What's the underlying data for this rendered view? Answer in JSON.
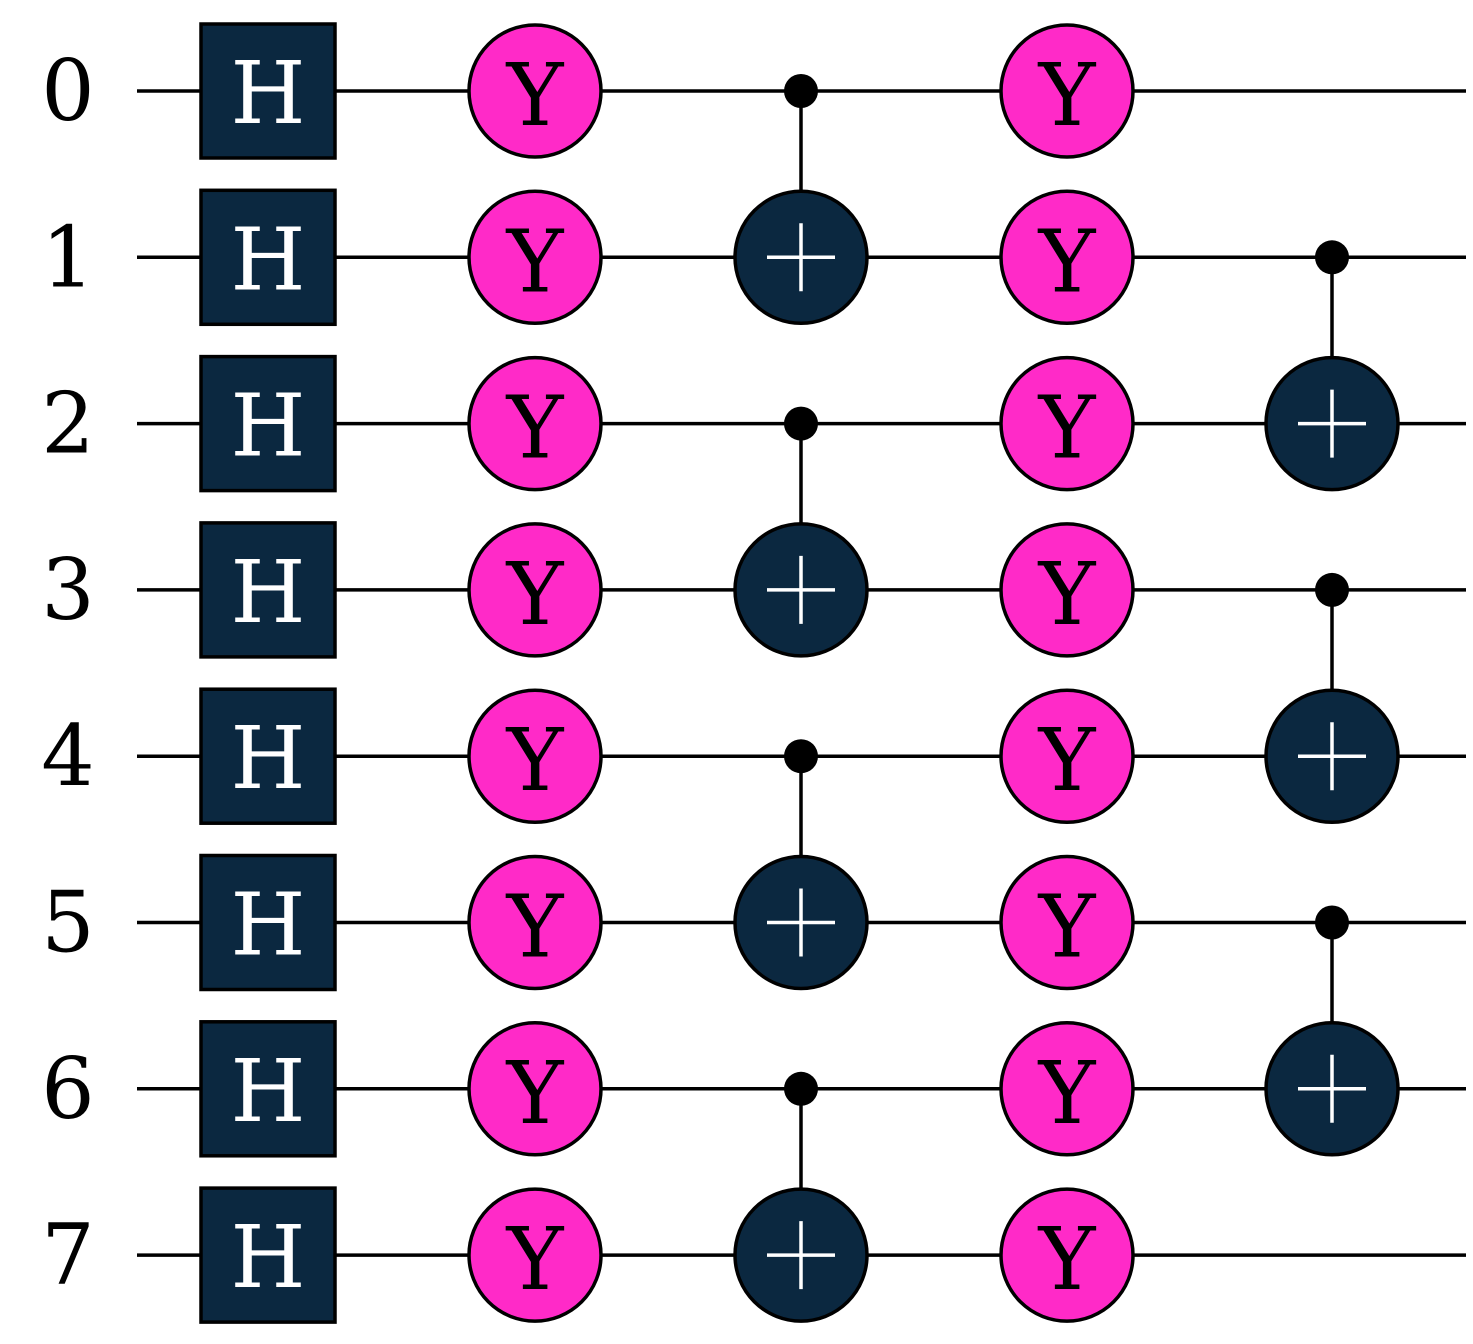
{
  "colors": {
    "background": "#ffffff",
    "wire": "#000000",
    "h_gate_fill": "#0b2840",
    "h_gate_text": "#ffffff",
    "y_gate_fill": "#ff2ac8",
    "y_gate_text": "#000000",
    "target_fill": "#0b2840",
    "target_symbol": "#ffffff",
    "control_dot": "#000000"
  },
  "circuit": {
    "num_qubits": 8,
    "qubit_labels": [
      "0",
      "1",
      "2",
      "3",
      "4",
      "5",
      "6",
      "7"
    ],
    "gate_symbols": {
      "H": "H",
      "Y": "Y"
    },
    "moments": [
      {
        "gates": [
          {
            "type": "H",
            "qubit": 0
          },
          {
            "type": "H",
            "qubit": 1
          },
          {
            "type": "H",
            "qubit": 2
          },
          {
            "type": "H",
            "qubit": 3
          },
          {
            "type": "H",
            "qubit": 4
          },
          {
            "type": "H",
            "qubit": 5
          },
          {
            "type": "H",
            "qubit": 6
          },
          {
            "type": "H",
            "qubit": 7
          }
        ]
      },
      {
        "gates": [
          {
            "type": "Y",
            "qubit": 0
          },
          {
            "type": "Y",
            "qubit": 1
          },
          {
            "type": "Y",
            "qubit": 2
          },
          {
            "type": "Y",
            "qubit": 3
          },
          {
            "type": "Y",
            "qubit": 4
          },
          {
            "type": "Y",
            "qubit": 5
          },
          {
            "type": "Y",
            "qubit": 6
          },
          {
            "type": "Y",
            "qubit": 7
          }
        ]
      },
      {
        "gates": [
          {
            "type": "CNOT",
            "control": 0,
            "target": 1
          },
          {
            "type": "CNOT",
            "control": 2,
            "target": 3
          },
          {
            "type": "CNOT",
            "control": 4,
            "target": 5
          },
          {
            "type": "CNOT",
            "control": 6,
            "target": 7
          }
        ]
      },
      {
        "gates": [
          {
            "type": "Y",
            "qubit": 0
          },
          {
            "type": "Y",
            "qubit": 1
          },
          {
            "type": "Y",
            "qubit": 2
          },
          {
            "type": "Y",
            "qubit": 3
          },
          {
            "type": "Y",
            "qubit": 4
          },
          {
            "type": "Y",
            "qubit": 5
          },
          {
            "type": "Y",
            "qubit": 6
          },
          {
            "type": "Y",
            "qubit": 7
          }
        ]
      },
      {
        "gates": [
          {
            "type": "CNOT",
            "control": 1,
            "target": 2
          },
          {
            "type": "CNOT",
            "control": 3,
            "target": 4
          },
          {
            "type": "CNOT",
            "control": 5,
            "target": 6
          }
        ]
      }
    ]
  }
}
